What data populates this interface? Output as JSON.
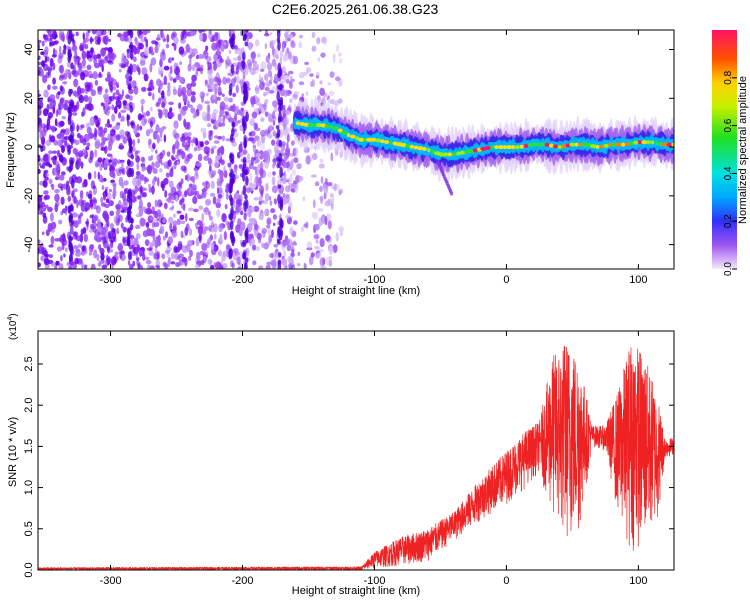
{
  "figure_title": "C2E6.2025.261.06.38.G23",
  "colors": {
    "axis": "#000000",
    "snr_line": "#ee2222",
    "background": "#ffffff"
  },
  "chart_data": [
    {
      "type": "heatmap",
      "name": "spectrogram",
      "xlabel": "Height of straight line (km)",
      "ylabel": "Frequency (Hz)",
      "xlim": [
        -355,
        127
      ],
      "ylim": [
        -50,
        48
      ],
      "x_ticks": [
        -300,
        -200,
        -100,
        0,
        100
      ],
      "y_ticks": [
        40,
        20,
        0,
        -20,
        -40
      ],
      "noise_region_km": [
        -355,
        -125
      ],
      "ridge": [
        {
          "x": -160,
          "y": 10
        },
        {
          "x": -150,
          "y": 9
        },
        {
          "x": -140,
          "y": 9
        },
        {
          "x": -130,
          "y": 8
        },
        {
          "x": -120,
          "y": 5
        },
        {
          "x": -110,
          "y": 3
        },
        {
          "x": -100,
          "y": 3
        },
        {
          "x": -90,
          "y": 2
        },
        {
          "x": -80,
          "y": 1
        },
        {
          "x": -70,
          "y": 0
        },
        {
          "x": -60,
          "y": -1
        },
        {
          "x": -50,
          "y": -3
        },
        {
          "x": -40,
          "y": -3
        },
        {
          "x": -30,
          "y": -2
        },
        {
          "x": -20,
          "y": -1
        },
        {
          "x": -10,
          "y": 0
        },
        {
          "x": 0,
          "y": 0
        },
        {
          "x": 10,
          "y": 0
        },
        {
          "x": 20,
          "y": 1
        },
        {
          "x": 30,
          "y": 1
        },
        {
          "x": 40,
          "y": 0
        },
        {
          "x": 50,
          "y": 1
        },
        {
          "x": 60,
          "y": 1
        },
        {
          "x": 70,
          "y": 0
        },
        {
          "x": 80,
          "y": 1
        },
        {
          "x": 90,
          "y": 1
        },
        {
          "x": 100,
          "y": 2
        },
        {
          "x": 110,
          "y": 2
        },
        {
          "x": 120,
          "y": 1
        },
        {
          "x": 127,
          "y": 1
        }
      ]
    },
    {
      "type": "colorbar",
      "name": "amplitude-colorbar",
      "label": "Normalized spectral amplitude",
      "range": [
        0,
        1
      ],
      "ticks": [
        "0.0",
        "0.2",
        "0.4",
        "0.6",
        "0.8"
      ],
      "tick_values": [
        0.0,
        0.2,
        0.4,
        0.6,
        0.8
      ]
    },
    {
      "type": "line",
      "name": "snr-plot",
      "xlabel": "Height of straight line (km)",
      "ylabel": "SNR (10 * v/v)",
      "multiplier_label": "(x10",
      "multiplier_exp": "4",
      "xlim": [
        -355,
        127
      ],
      "ylim": [
        0,
        2.9
      ],
      "x_ticks": [
        -300,
        -200,
        -100,
        0,
        100
      ],
      "y_ticks": [
        "0.0",
        "0.5",
        "1.0",
        "1.5",
        "2.0",
        "2.5"
      ],
      "y_tick_values": [
        0.0,
        0.5,
        1.0,
        1.5,
        2.0,
        2.5
      ],
      "envelope": [
        {
          "x": -355,
          "lo": 0.0,
          "hi": 0.03
        },
        {
          "x": -110,
          "lo": 0.0,
          "hi": 0.04
        },
        {
          "x": -100,
          "lo": 0.02,
          "hi": 0.22
        },
        {
          "x": -80,
          "lo": 0.05,
          "hi": 0.4
        },
        {
          "x": -60,
          "lo": 0.1,
          "hi": 0.5
        },
        {
          "x": -40,
          "lo": 0.35,
          "hi": 0.7
        },
        {
          "x": -20,
          "lo": 0.6,
          "hi": 1.1
        },
        {
          "x": 0,
          "lo": 0.8,
          "hi": 1.45
        },
        {
          "x": 15,
          "lo": 1.0,
          "hi": 1.7
        },
        {
          "x": 25,
          "lo": 1.2,
          "hi": 1.8
        },
        {
          "x": 35,
          "lo": 0.6,
          "hi": 2.6
        },
        {
          "x": 45,
          "lo": 0.3,
          "hi": 2.8
        },
        {
          "x": 55,
          "lo": 0.4,
          "hi": 2.6
        },
        {
          "x": 65,
          "lo": 1.5,
          "hi": 1.75
        },
        {
          "x": 75,
          "lo": 1.45,
          "hi": 1.75
        },
        {
          "x": 85,
          "lo": 0.6,
          "hi": 2.2
        },
        {
          "x": 95,
          "lo": 0.2,
          "hi": 2.85
        },
        {
          "x": 105,
          "lo": 0.3,
          "hi": 2.6
        },
        {
          "x": 115,
          "lo": 0.6,
          "hi": 2.1
        },
        {
          "x": 120,
          "lo": 1.35,
          "hi": 1.6
        },
        {
          "x": 127,
          "lo": 1.4,
          "hi": 1.6
        }
      ]
    }
  ]
}
